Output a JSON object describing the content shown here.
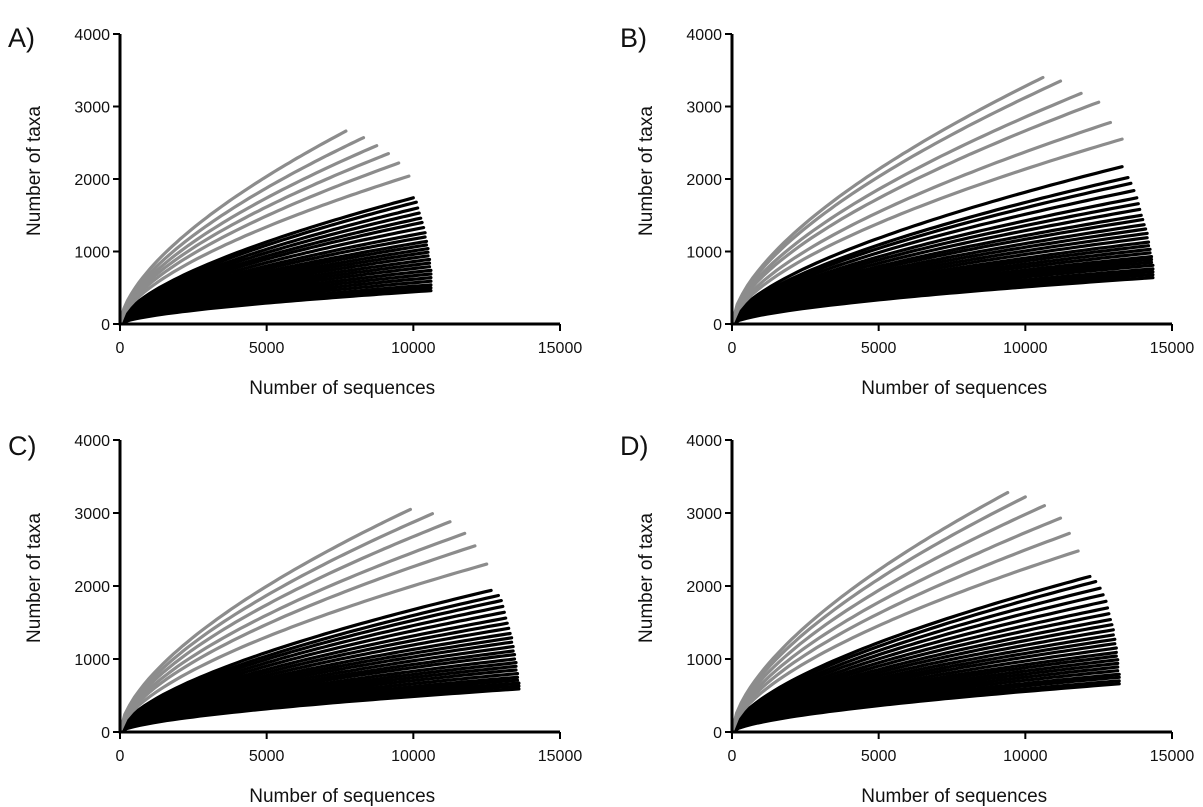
{
  "colors": {
    "high_group": "#8c8c8c",
    "low_group": "#000000",
    "axis": "#000000"
  },
  "chart_data": [
    {
      "type": "line",
      "panel_label": "A)",
      "xlabel": "Number of sequences",
      "ylabel": "Number of taxa",
      "xlim": [
        0,
        15000
      ],
      "ylim": [
        0,
        4000
      ],
      "xticks": [
        "0",
        "5000",
        "10000",
        "15000"
      ],
      "yticks": [
        "0",
        "1000",
        "2000",
        "3000",
        "4000"
      ],
      "grid": false,
      "gray_series_endpoints": [
        [
          7700,
          2660
        ],
        [
          8300,
          2570
        ],
        [
          8750,
          2460
        ],
        [
          9150,
          2350
        ],
        [
          9500,
          2220
        ],
        [
          9850,
          2040
        ]
      ],
      "black_series_endpoints": [
        [
          10000,
          1740
        ],
        [
          10100,
          1680
        ],
        [
          10150,
          1600
        ],
        [
          10200,
          1530
        ],
        [
          10250,
          1460
        ],
        [
          10300,
          1400
        ],
        [
          10350,
          1330
        ],
        [
          10400,
          1260
        ],
        [
          10400,
          1200
        ],
        [
          10450,
          1140
        ],
        [
          10450,
          1090
        ],
        [
          10500,
          1040
        ],
        [
          10500,
          990
        ],
        [
          10500,
          940
        ],
        [
          10550,
          890
        ],
        [
          10550,
          840
        ],
        [
          10550,
          790
        ],
        [
          10600,
          740
        ],
        [
          10600,
          690
        ],
        [
          10600,
          640
        ],
        [
          10600,
          590
        ],
        [
          10600,
          540
        ],
        [
          10600,
          500
        ],
        [
          10600,
          460
        ]
      ]
    },
    {
      "type": "line",
      "panel_label": "B)",
      "xlabel": "Number of sequences",
      "ylabel": "Number of taxa",
      "xlim": [
        0,
        15000
      ],
      "ylim": [
        0,
        4000
      ],
      "xticks": [
        "0",
        "5000",
        "10000",
        "15000"
      ],
      "yticks": [
        "0",
        "1000",
        "2000",
        "3000",
        "4000"
      ],
      "grid": false,
      "gray_series_endpoints": [
        [
          10600,
          3400
        ],
        [
          11200,
          3350
        ],
        [
          11900,
          3180
        ],
        [
          12500,
          3060
        ],
        [
          12900,
          2780
        ],
        [
          13300,
          2550
        ]
      ],
      "black_series_endpoints": [
        [
          13300,
          2170
        ],
        [
          13500,
          2020
        ],
        [
          13600,
          1940
        ],
        [
          13700,
          1840
        ],
        [
          13800,
          1740
        ],
        [
          13850,
          1660
        ],
        [
          13900,
          1580
        ],
        [
          13950,
          1500
        ],
        [
          14000,
          1440
        ],
        [
          14050,
          1370
        ],
        [
          14100,
          1310
        ],
        [
          14150,
          1250
        ],
        [
          14150,
          1190
        ],
        [
          14200,
          1130
        ],
        [
          14200,
          1080
        ],
        [
          14250,
          1030
        ],
        [
          14250,
          980
        ],
        [
          14300,
          930
        ],
        [
          14300,
          890
        ],
        [
          14300,
          850
        ],
        [
          14350,
          810
        ],
        [
          14350,
          760
        ],
        [
          14350,
          720
        ],
        [
          14350,
          680
        ],
        [
          14350,
          640
        ]
      ]
    },
    {
      "type": "line",
      "panel_label": "C)",
      "xlabel": "Number of sequences",
      "ylabel": "Number of taxa",
      "xlim": [
        0,
        15000
      ],
      "ylim": [
        0,
        4000
      ],
      "xticks": [
        "0",
        "5000",
        "10000",
        "15000"
      ],
      "yticks": [
        "0",
        "1000",
        "2000",
        "3000",
        "4000"
      ],
      "grid": false,
      "gray_series_endpoints": [
        [
          9900,
          3050
        ],
        [
          10650,
          2990
        ],
        [
          11250,
          2880
        ],
        [
          11750,
          2720
        ],
        [
          12100,
          2550
        ],
        [
          12500,
          2300
        ]
      ],
      "black_series_endpoints": [
        [
          12650,
          1940
        ],
        [
          12900,
          1870
        ],
        [
          13000,
          1800
        ],
        [
          13050,
          1720
        ],
        [
          13100,
          1640
        ],
        [
          13150,
          1560
        ],
        [
          13200,
          1490
        ],
        [
          13250,
          1420
        ],
        [
          13300,
          1350
        ],
        [
          13350,
          1290
        ],
        [
          13350,
          1230
        ],
        [
          13400,
          1170
        ],
        [
          13400,
          1110
        ],
        [
          13450,
          1060
        ],
        [
          13450,
          1000
        ],
        [
          13500,
          950
        ],
        [
          13500,
          900
        ],
        [
          13500,
          850
        ],
        [
          13550,
          800
        ],
        [
          13550,
          750
        ],
        [
          13550,
          710
        ],
        [
          13600,
          670
        ],
        [
          13600,
          630
        ],
        [
          13600,
          590
        ]
      ]
    },
    {
      "type": "line",
      "panel_label": "D)",
      "xlabel": "Number of sequences",
      "ylabel": "Number of taxa",
      "xlim": [
        0,
        15000
      ],
      "ylim": [
        0,
        4000
      ],
      "xticks": [
        "0",
        "5000",
        "10000",
        "15000"
      ],
      "yticks": [
        "0",
        "1000",
        "2000",
        "3000",
        "4000"
      ],
      "grid": false,
      "gray_series_endpoints": [
        [
          9400,
          3280
        ],
        [
          10000,
          3220
        ],
        [
          10650,
          3100
        ],
        [
          11200,
          2930
        ],
        [
          11500,
          2720
        ],
        [
          11800,
          2480
        ]
      ],
      "black_series_endpoints": [
        [
          12200,
          2130
        ],
        [
          12400,
          2060
        ],
        [
          12550,
          1970
        ],
        [
          12650,
          1880
        ],
        [
          12750,
          1790
        ],
        [
          12800,
          1700
        ],
        [
          12850,
          1620
        ],
        [
          12900,
          1540
        ],
        [
          12950,
          1470
        ],
        [
          13000,
          1400
        ],
        [
          13000,
          1330
        ],
        [
          13050,
          1270
        ],
        [
          13050,
          1210
        ],
        [
          13100,
          1150
        ],
        [
          13100,
          1090
        ],
        [
          13100,
          1040
        ],
        [
          13150,
          990
        ],
        [
          13150,
          940
        ],
        [
          13150,
          890
        ],
        [
          13150,
          840
        ],
        [
          13200,
          790
        ],
        [
          13200,
          750
        ],
        [
          13200,
          700
        ],
        [
          13200,
          660
        ]
      ]
    }
  ]
}
